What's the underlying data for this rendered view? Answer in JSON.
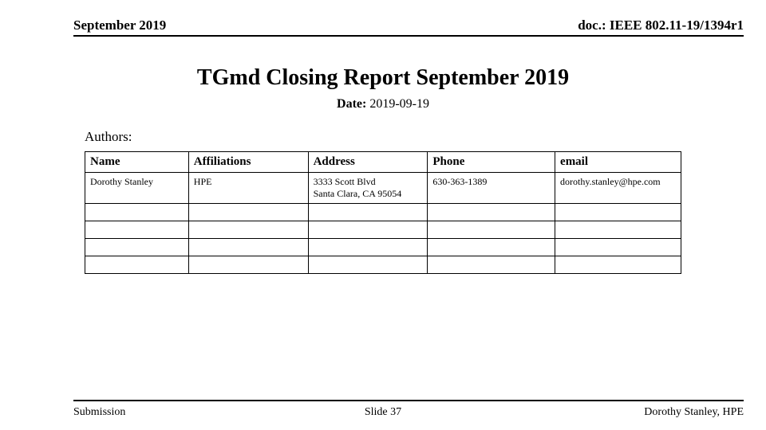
{
  "header": {
    "left": "September 2019",
    "right": "doc.: IEEE 802.11-19/1394r1"
  },
  "title": "TGmd Closing Report September 2019",
  "date": {
    "label": "Date:",
    "value": "2019-09-19"
  },
  "authors_label": "Authors:",
  "table": {
    "columns": [
      "Name",
      "Affiliations",
      "Address",
      "Phone",
      "email"
    ],
    "rows": [
      {
        "name": "Dorothy Stanley",
        "affiliation": "HPE",
        "address_line1": "3333 Scott Blvd",
        "address_line2": "Santa Clara, CA 95054",
        "phone": "630-363-1389",
        "email": "dorothy.stanley@hpe.com"
      }
    ],
    "empty_rows": 4
  },
  "footer": {
    "left": "Submission",
    "center": "Slide 37",
    "right": "Dorothy Stanley, HPE"
  },
  "colors": {
    "text": "#000000",
    "background": "#ffffff",
    "rule": "#000000",
    "border": "#000000"
  }
}
